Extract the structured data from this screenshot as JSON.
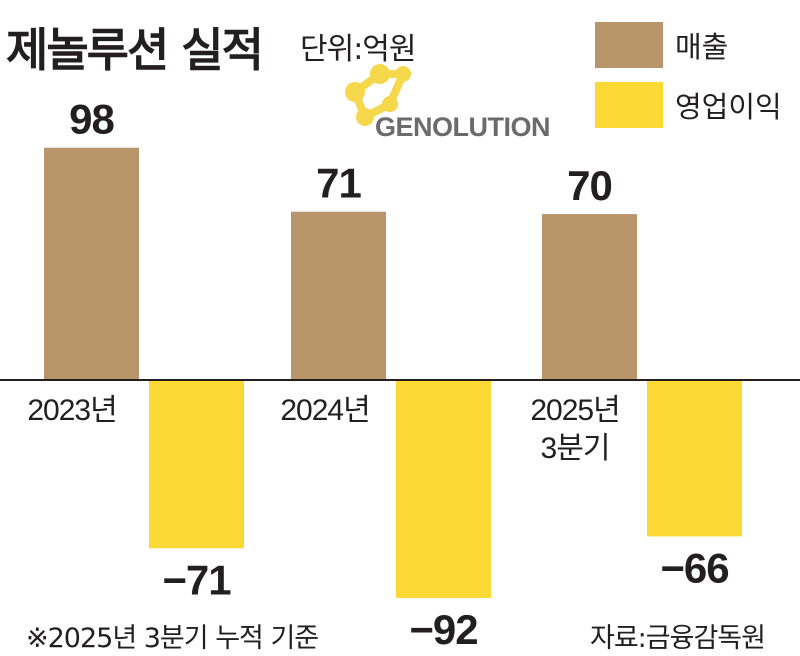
{
  "header": {
    "title": "제놀루션 실적",
    "unit": "단위:억원"
  },
  "logo": {
    "text": "GENOLUTION"
  },
  "legend": {
    "items": [
      {
        "label": "매출",
        "color": "#b8956b"
      },
      {
        "label": "영업이익",
        "color": "#fdd935"
      }
    ]
  },
  "footer": {
    "note": "※2025년 3분기 누적 기준",
    "source": "자료:금융감독원"
  },
  "chart_data": {
    "type": "bar",
    "categories": [
      {
        "lines": [
          "2023년"
        ]
      },
      {
        "lines": [
          "2024년"
        ]
      },
      {
        "lines": [
          "2025년",
          "3분기"
        ]
      }
    ],
    "series": [
      {
        "name": "매출",
        "values": [
          98,
          71,
          70
        ],
        "labels": [
          "98",
          "71",
          "70"
        ],
        "color": "#b8956b"
      },
      {
        "name": "영업이익",
        "values": [
          -71,
          -92,
          -66
        ],
        "labels": [
          "−71",
          "−92",
          "−66"
        ],
        "color": "#fdd935"
      }
    ],
    "grid": false,
    "legend_position": "top-right"
  }
}
